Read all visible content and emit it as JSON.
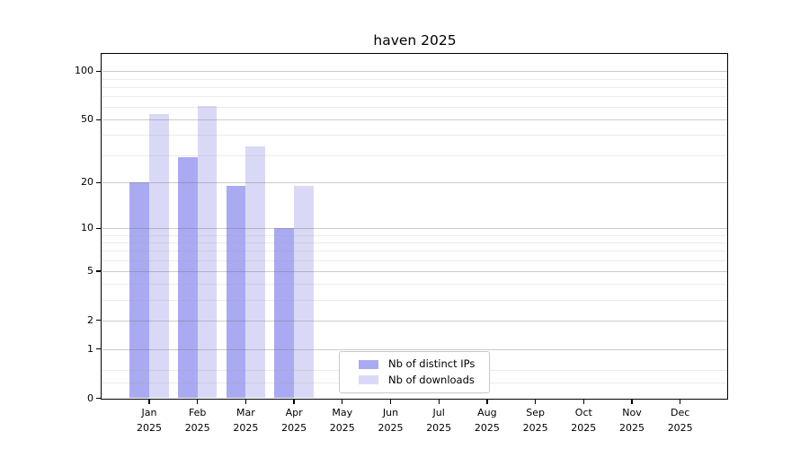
{
  "title": "haven 2025",
  "chart_data": {
    "type": "bar",
    "title": "haven 2025",
    "categories": [
      "Jan",
      "Feb",
      "Mar",
      "Apr",
      "May",
      "Jun",
      "Jul",
      "Aug",
      "Sep",
      "Oct",
      "Nov",
      "Dec"
    ],
    "year_label": "2025",
    "series": [
      {
        "name": "Nb of distinct IPs",
        "color": "#aaaaf2",
        "values": [
          20,
          29,
          19,
          10,
          null,
          null,
          null,
          null,
          null,
          null,
          null,
          null
        ]
      },
      {
        "name": "Nb of downloads",
        "color": "#d9d9f7",
        "values": [
          54,
          61,
          34,
          19,
          null,
          null,
          null,
          null,
          null,
          null,
          null,
          null
        ]
      }
    ],
    "xlabel": "",
    "ylabel": "",
    "yscale": "log1p",
    "ylim": [
      0,
      128
    ],
    "y_ticks": [
      0,
      1,
      2,
      5,
      10,
      20,
      50,
      100
    ],
    "y_minor_ticks": [
      0.25,
      0.5,
      3,
      4,
      6,
      7,
      8,
      9,
      30,
      40,
      60,
      70,
      80,
      90
    ],
    "grid": "horizontal",
    "legend_position": "lower-center"
  }
}
